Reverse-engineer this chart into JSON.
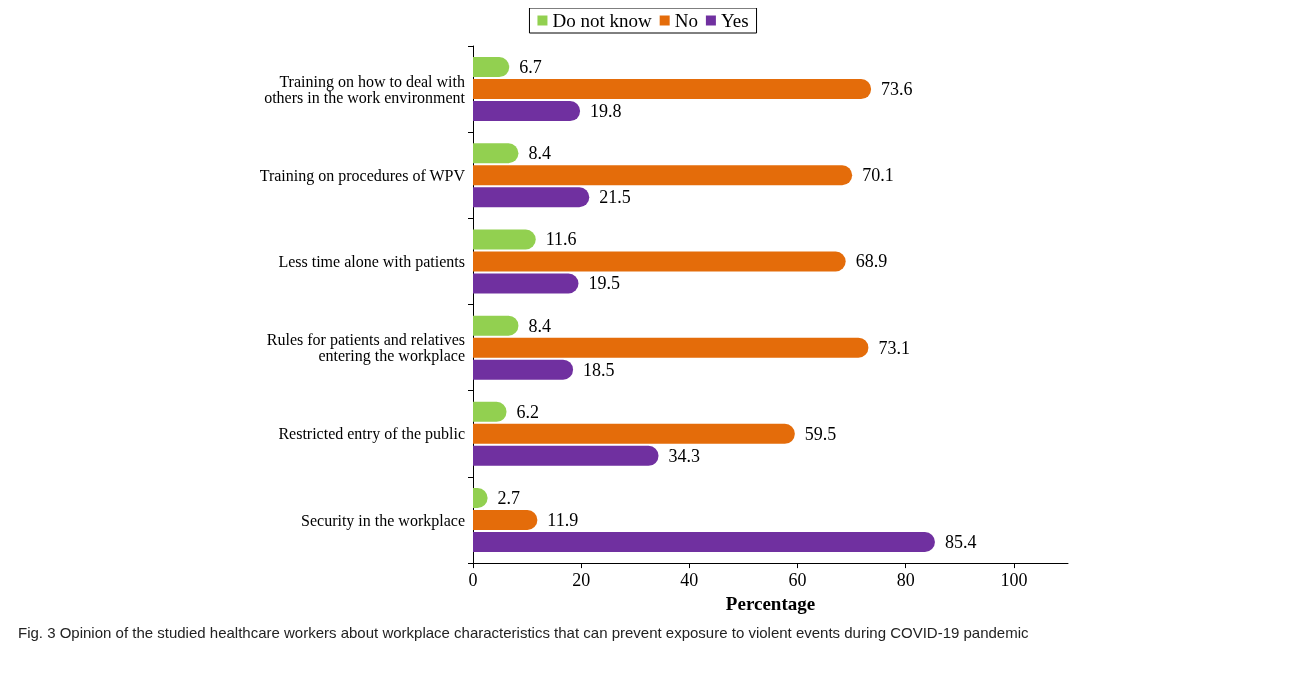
{
  "chart_data": {
    "type": "bar",
    "orientation": "horizontal",
    "xlabel": "Percentage",
    "categories": [
      "Training on how to deal with\nothers in the work environment",
      "Training on procedures of WPV",
      "Less time alone with patients",
      "Rules for patients and relatives\nentering the workplace",
      "Restricted entry of the public",
      "Security in the workplace"
    ],
    "series": [
      {
        "name": "Do not know",
        "color": "#92d050",
        "values": [
          6.7,
          8.4,
          11.6,
          8.4,
          6.2,
          2.7
        ]
      },
      {
        "name": "No",
        "color": "#e46c0a",
        "values": [
          73.6,
          70.1,
          68.9,
          73.1,
          59.5,
          11.9
        ]
      },
      {
        "name": "Yes",
        "color": "#7030a0",
        "values": [
          19.8,
          21.5,
          19.5,
          18.5,
          34.3,
          85.4
        ]
      }
    ],
    "xlim": [
      0,
      110
    ],
    "xticks": [
      0,
      20,
      40,
      60,
      80,
      100
    ],
    "grid": false,
    "legend": "top",
    "data_labels": true,
    "annotations": [
      "Fig. 3 Opinion of the studied healthcare workers about workplace characteristics that can prevent exposure to violent events during COVID-19 pandemic"
    ]
  }
}
